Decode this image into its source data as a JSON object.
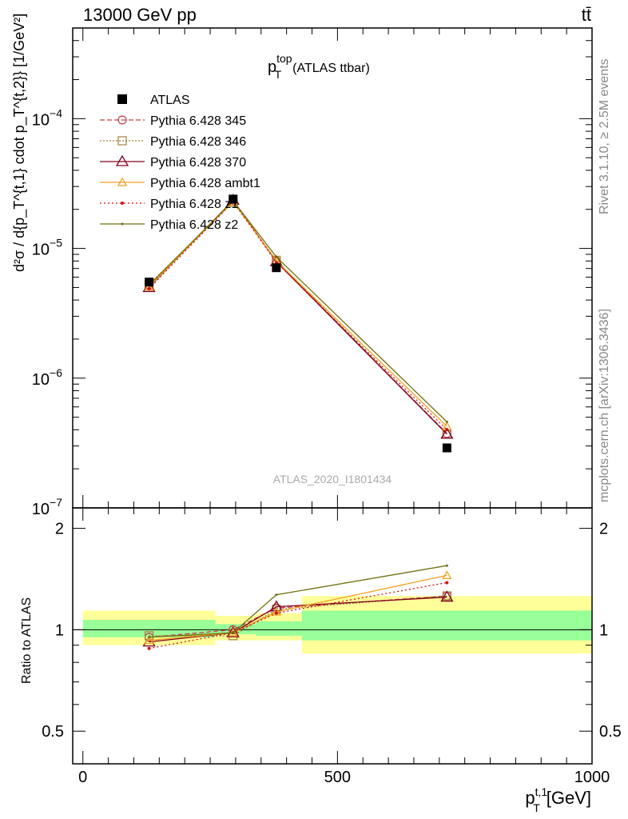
{
  "header": {
    "energy_label": "13000 GeV pp",
    "process_label": "tt̄"
  },
  "side_labels": {
    "rivet": "Rivet 3.1.10, ≥ 2.5M events",
    "mcplots": "mcplots.cern.ch [arXiv:1306.3436]"
  },
  "colors": {
    "ATLAS": "#000000",
    "Pythia 6.428 345": "#c0404a",
    "Pythia 6.428 346": "#a08038",
    "Pythia 6.428 370": "#800020",
    "Pythia 6.428 ambt1": "#f0a020",
    "Pythia 6.428 z1": "#d01010",
    "Pythia 6.428 z2": "#707010",
    "band_inner": "#99ff99",
    "band_outer": "#ffff99"
  },
  "chart_data": [
    {
      "type": "line",
      "title_main": "p",
      "title_sup": "top",
      "title_sub": "T",
      "title_suffix": "(ATLAS ttbar)",
      "ylabel": "d²σ / d{p_T^{t,1} cdot p_T^{t,2}} [1/GeV²]",
      "yscale": "log",
      "ylim": [
        1e-07,
        0.0005
      ],
      "xlim": [
        -20,
        1000
      ],
      "analysis_label": "ATLAS_2020_I1801434",
      "ytick_labels": [
        {
          "value": 1e-07,
          "mant": "10",
          "exp": "−7"
        },
        {
          "value": 1e-06,
          "mant": "10",
          "exp": "−6"
        },
        {
          "value": 1e-05,
          "mant": "10",
          "exp": "−5"
        },
        {
          "value": 0.0001,
          "mant": "10",
          "exp": "−4"
        }
      ],
      "x": [
        130,
        295,
        380,
        715
      ],
      "data": {
        "name": "ATLAS",
        "values": [
          5.5e-06,
          2.4e-05,
          7.1e-06,
          2.9e-07
        ]
      },
      "series": [
        {
          "name": "Pythia 6.428 345",
          "marker": "circle",
          "dash": "6,3",
          "values": [
            5.2e-06,
            2.32e-05,
            8e-06,
            3.75e-07
          ]
        },
        {
          "name": "Pythia 6.428 346",
          "marker": "square",
          "dash": "2,2",
          "values": [
            5.3e-06,
            2.27e-05,
            8.1e-06,
            3.7e-07
          ]
        },
        {
          "name": "Pythia 6.428 370",
          "marker": "triangle",
          "dash": "",
          "values": [
            5e-06,
            2.35e-05,
            7.9e-06,
            3.7e-07
          ]
        },
        {
          "name": "Pythia 6.428 ambt1",
          "marker": "triangle-small",
          "dash": "",
          "values": [
            5.05e-06,
            2.3e-05,
            8e-06,
            4.25e-07
          ]
        },
        {
          "name": "Pythia 6.428 z1",
          "marker": "dot",
          "dash": "2,3",
          "values": [
            4.9e-06,
            2.3e-05,
            7.8e-06,
            4e-07
          ]
        },
        {
          "name": "Pythia 6.428 z2",
          "marker": "dot-small",
          "dash": "",
          "values": [
            5.2e-06,
            2.33e-05,
            8.6e-06,
            4.6e-07
          ]
        }
      ]
    },
    {
      "type": "line",
      "ylabel": "Ratio to ATLAS",
      "xlabel_main": "p",
      "xlabel_sup": "t,1",
      "xlabel_sub": "T",
      "xlabel_suffix": "[GeV]",
      "xlim": [
        -20,
        1000
      ],
      "ylim": [
        0.4,
        2.3
      ],
      "yscale": "log",
      "xtick_labels": [
        {
          "value": 0,
          "label": "0"
        },
        {
          "value": 500,
          "label": "500"
        },
        {
          "value": 1000,
          "label": "1000"
        }
      ],
      "ytick_labels": [
        {
          "value": 0.5,
          "label": "0.5"
        },
        {
          "value": 1,
          "label": "1"
        },
        {
          "value": 2,
          "label": "2"
        }
      ],
      "bins": [
        {
          "x0": 0,
          "x1": 260,
          "inner": [
            0.95,
            1.07
          ],
          "outer": [
            0.9,
            1.14
          ]
        },
        {
          "x0": 260,
          "x1": 340,
          "inner": [
            0.97,
            1.04
          ],
          "outer": [
            0.93,
            1.1
          ]
        },
        {
          "x0": 340,
          "x1": 430,
          "inner": [
            0.96,
            1.06
          ],
          "outer": [
            0.93,
            1.12
          ]
        },
        {
          "x0": 430,
          "x1": 1000,
          "inner": [
            0.93,
            1.14
          ],
          "outer": [
            0.85,
            1.26
          ]
        }
      ],
      "x": [
        130,
        295,
        380,
        715
      ],
      "series": [
        {
          "name": "Pythia 6.428 345",
          "marker": "circle",
          "dash": "6,3",
          "values": [
            0.95,
            1.0,
            1.16,
            1.26
          ]
        },
        {
          "name": "Pythia 6.428 346",
          "marker": "square",
          "dash": "2,2",
          "values": [
            0.96,
            0.96,
            1.15,
            1.26
          ]
        },
        {
          "name": "Pythia 6.428 370",
          "marker": "triangle",
          "dash": "",
          "values": [
            0.92,
            0.98,
            1.17,
            1.25
          ]
        },
        {
          "name": "Pythia 6.428 ambt1",
          "marker": "triangle-small",
          "dash": "",
          "values": [
            0.93,
            0.98,
            1.13,
            1.45
          ]
        },
        {
          "name": "Pythia 6.428 z1",
          "marker": "dot",
          "dash": "2,3",
          "values": [
            0.88,
            0.98,
            1.12,
            1.38
          ]
        },
        {
          "name": "Pythia 6.428 z2",
          "marker": "dot-small",
          "dash": "",
          "values": [
            0.95,
            0.98,
            1.27,
            1.55
          ]
        }
      ]
    }
  ]
}
